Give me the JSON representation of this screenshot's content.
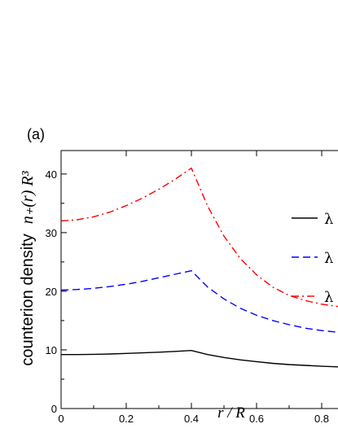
{
  "chart_data": {
    "type": "line",
    "panel_label": "(a)",
    "xlabel": "r / R",
    "ylabel_text": "counterion density",
    "ylabel_math": "n₊(r) R³",
    "xlim": [
      0,
      0.85
    ],
    "ylim": [
      0,
      44
    ],
    "xticks": [
      0,
      0.2,
      0.4,
      0.6,
      0.8
    ],
    "xtick_labels": [
      "0",
      "0.2",
      "0.4",
      "0.6",
      "0.8"
    ],
    "yticks": [
      0,
      10,
      20,
      30,
      40
    ],
    "ytick_labels": [
      "0",
      "10",
      "20",
      "30",
      "40"
    ],
    "grid": false,
    "legend_position": "right",
    "series": [
      {
        "name": "λ",
        "color": "#000000",
        "dash": "solid",
        "x": [
          0,
          0.05,
          0.1,
          0.15,
          0.2,
          0.25,
          0.3,
          0.35,
          0.4,
          0.45,
          0.5,
          0.55,
          0.6,
          0.65,
          0.7,
          0.75,
          0.8,
          0.85
        ],
        "y": [
          9.2,
          9.2,
          9.25,
          9.3,
          9.4,
          9.5,
          9.6,
          9.75,
          9.9,
          9.2,
          8.7,
          8.3,
          8.0,
          7.7,
          7.5,
          7.35,
          7.2,
          7.1
        ]
      },
      {
        "name": "λ",
        "color": "#0000ff",
        "dash": "dashed",
        "x": [
          0,
          0.05,
          0.1,
          0.15,
          0.2,
          0.25,
          0.3,
          0.35,
          0.4,
          0.45,
          0.5,
          0.55,
          0.6,
          0.65,
          0.7,
          0.75,
          0.8,
          0.85
        ],
        "y": [
          20.2,
          20.3,
          20.5,
          20.8,
          21.2,
          21.7,
          22.3,
          22.9,
          23.5,
          20.7,
          18.7,
          17.1,
          15.9,
          15.0,
          14.3,
          13.7,
          13.3,
          13.0
        ]
      },
      {
        "name": "λ",
        "color": "#ff0000",
        "dash": "dashdot",
        "x": [
          0,
          0.05,
          0.1,
          0.15,
          0.2,
          0.25,
          0.3,
          0.35,
          0.4,
          0.45,
          0.5,
          0.55,
          0.6,
          0.65,
          0.7,
          0.75,
          0.8,
          0.85
        ],
        "y": [
          32.0,
          32.2,
          32.7,
          33.5,
          34.6,
          35.9,
          37.4,
          39.1,
          41.0,
          34.5,
          29.4,
          25.6,
          22.8,
          20.7,
          19.3,
          18.4,
          17.8,
          17.4
        ]
      }
    ]
  }
}
